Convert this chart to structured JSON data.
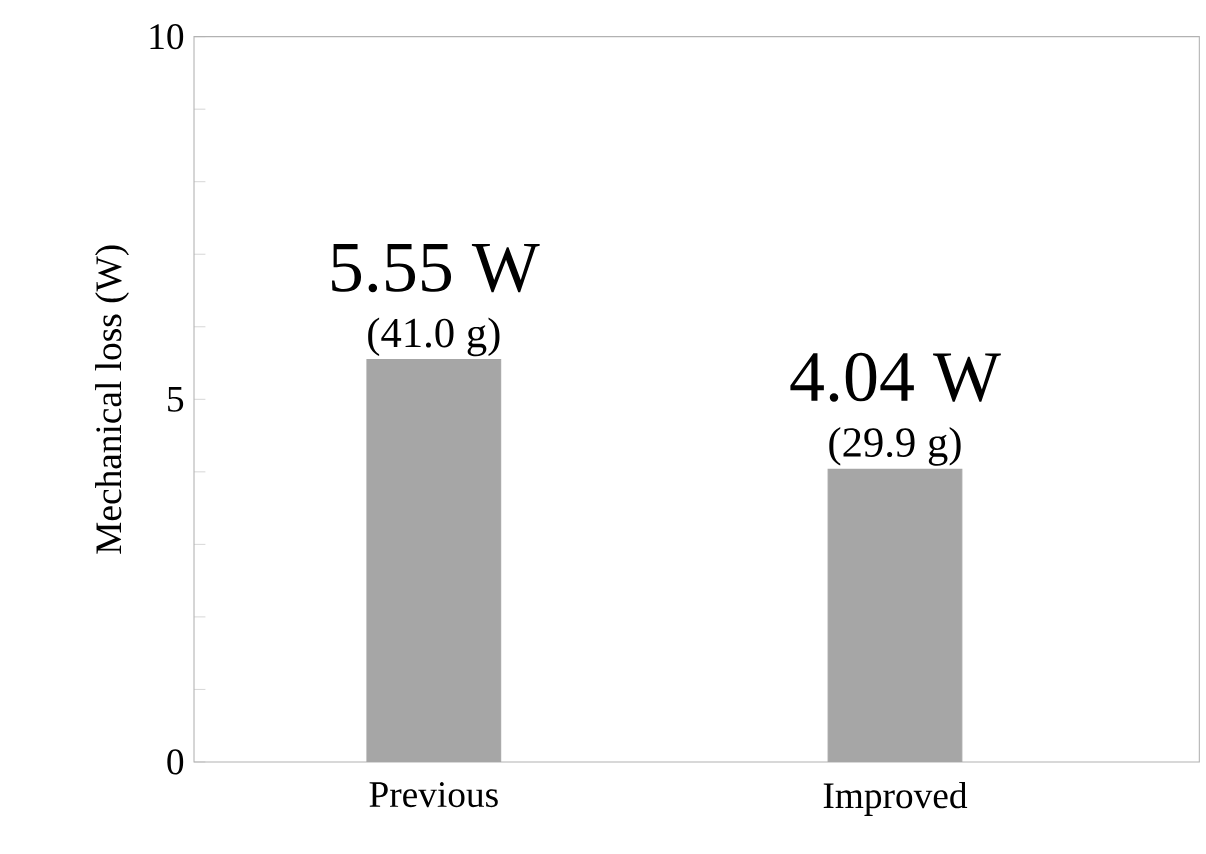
{
  "chart_data": {
    "type": "bar",
    "ylabel": "Mechanical loss (W)",
    "categories": [
      "Previous",
      "Improved"
    ],
    "values": [
      5.55,
      4.04
    ],
    "colors": [
      "#a6a6a6",
      "#a6a6a6"
    ],
    "value_labels": [
      "5.55 W",
      "4.04 W"
    ],
    "annotations": [
      {
        "text": "(41.0 g)",
        "x": "Previous",
        "y": 5.55
      },
      {
        "text": "(29.9 g)",
        "x": "Improved",
        "y": 4.04
      }
    ],
    "ylim": [
      0,
      10
    ],
    "yticks": [
      0,
      {
        "value": 1,
        "label": null
      },
      {
        "value": 2,
        "label": null
      },
      {
        "value": 3,
        "label": null
      },
      {
        "value": 4,
        "label": null
      },
      5,
      {
        "value": 6,
        "label": null
      },
      {
        "value": 7,
        "label": null
      },
      {
        "value": 8,
        "label": null
      },
      {
        "value": 9,
        "label": null
      },
      10
    ],
    "grid": false
  }
}
